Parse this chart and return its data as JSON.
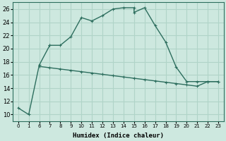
{
  "xlabel": "Humidex (Indice chaleur)",
  "background_color": "#cde8df",
  "grid_color": "#b0d4c8",
  "line_color": "#2d6e5e",
  "ylim": [
    9,
    27
  ],
  "yticks": [
    10,
    12,
    14,
    16,
    18,
    20,
    22,
    24,
    26
  ],
  "xtick_positions": [
    0,
    1,
    6,
    7,
    8,
    9,
    10,
    11,
    12,
    13,
    14,
    15,
    16,
    17,
    18,
    19,
    20,
    21,
    22,
    23
  ],
  "xtick_labels": [
    "0",
    "1",
    "6",
    "7",
    "8",
    "9",
    "10",
    "11",
    "12",
    "13",
    "14",
    "15",
    "16",
    "17",
    "18",
    "19",
    "20",
    "21",
    "22",
    "23"
  ],
  "segment1_x": [
    0,
    1,
    6,
    7,
    7,
    8,
    9,
    10,
    11,
    12,
    13,
    14,
    15,
    15,
    16,
    17,
    18,
    19,
    20,
    21,
    22,
    23
  ],
  "segment1_y": [
    11,
    10,
    17.5,
    20.5,
    20.5,
    20.5,
    21.8,
    24.7,
    24.2,
    25.0,
    26.0,
    26.2,
    26.2,
    25.5,
    26.2,
    23.5,
    21.0,
    17.2,
    15.0,
    15.0,
    15.0,
    15.0
  ],
  "segment2_x": [
    6,
    7,
    8,
    9,
    10,
    11,
    12,
    13,
    14,
    15,
    16,
    17,
    18,
    19,
    20,
    21,
    22,
    23
  ],
  "segment2_y": [
    17.3,
    17.1,
    16.9,
    16.7,
    16.5,
    16.3,
    16.1,
    15.9,
    15.7,
    15.5,
    15.3,
    15.1,
    14.9,
    14.7,
    14.5,
    14.3,
    15.0,
    15.0
  ],
  "gap_start": 1,
  "gap_end": 6
}
